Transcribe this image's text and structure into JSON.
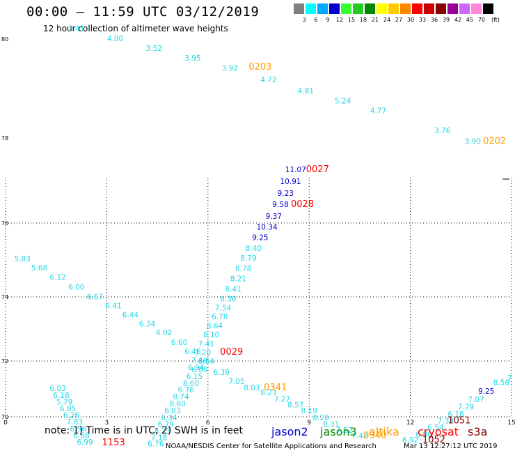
{
  "header": {
    "title": "00:00 – 11:59 UTC 03/12/2019",
    "subtitle": "12 hour collection of altimeter wave heights"
  },
  "colorscale": {
    "unit": "(ft)",
    "bins": [
      {
        "label": "3",
        "color": "#808080"
      },
      {
        "label": "6",
        "color": "#00ffff"
      },
      {
        "label": "9",
        "color": "#00aaff"
      },
      {
        "label": "12",
        "color": "#0000cc"
      },
      {
        "label": "15",
        "color": "#33ff33"
      },
      {
        "label": "18",
        "color": "#22cc22"
      },
      {
        "label": "21",
        "color": "#008800"
      },
      {
        "label": "24",
        "color": "#ffff00"
      },
      {
        "label": "27",
        "color": "#ffcc00"
      },
      {
        "label": "30",
        "color": "#ff8800"
      },
      {
        "label": "33",
        "color": "#ff0000"
      },
      {
        "label": "36",
        "color": "#cc0000"
      },
      {
        "label": "39",
        "color": "#880000"
      },
      {
        "label": "42",
        "color": "#990099"
      },
      {
        "label": "45",
        "color": "#cc66ff"
      },
      {
        "label": "70",
        "color": "#ff88dd"
      },
      {
        "label": "",
        "color": "#000000"
      }
    ]
  },
  "chart_data": {
    "type": "scatter",
    "x_ticks": [
      "0",
      "3",
      "6",
      "9",
      "12",
      "15"
    ],
    "y_ticks": [
      "70",
      "72",
      "74",
      "76",
      "78",
      "80"
    ],
    "xlim": [
      0,
      15
    ],
    "colors": {
      "cyan": "#1ed7e6",
      "blue": "#0000cc",
      "orange": "#ff9a00",
      "red": "#ff0000",
      "darkred": "#880000"
    },
    "points": [
      {
        "x": 2.1,
        "y": 80.16,
        "t": "3.41",
        "c": "cyan"
      },
      {
        "x": 3.25,
        "y": 79.96,
        "t": "4.00",
        "c": "cyan"
      },
      {
        "x": 4.4,
        "y": 79.76,
        "t": "3.52",
        "c": "cyan"
      },
      {
        "x": 5.55,
        "y": 79.56,
        "t": "3.95",
        "c": "cyan"
      },
      {
        "x": 6.65,
        "y": 79.36,
        "t": "3.92",
        "c": "cyan"
      },
      {
        "x": 7.8,
        "y": 79.13,
        "t": "4.72",
        "c": "cyan"
      },
      {
        "x": 8.9,
        "y": 78.9,
        "t": "4.81",
        "c": "cyan"
      },
      {
        "x": 10.0,
        "y": 78.7,
        "t": "5.24",
        "c": "cyan"
      },
      {
        "x": 11.05,
        "y": 78.5,
        "t": "4.77",
        "c": "cyan"
      },
      {
        "x": 12.95,
        "y": 78.1,
        "t": "3.76",
        "c": "cyan"
      },
      {
        "x": 13.85,
        "y": 77.86,
        "t": "3.90",
        "c": "cyan"
      },
      {
        "x": 8.6,
        "y": 77.2,
        "t": "11.07",
        "c": "blue"
      },
      {
        "x": 8.45,
        "y": 76.92,
        "t": "10.91",
        "c": "blue"
      },
      {
        "x": 8.3,
        "y": 76.64,
        "t": "9.23",
        "c": "blue"
      },
      {
        "x": 8.15,
        "y": 76.38,
        "t": "9.58",
        "c": "blue"
      },
      {
        "x": 7.95,
        "y": 76.1,
        "t": "9.37",
        "c": "blue"
      },
      {
        "x": 7.75,
        "y": 75.82,
        "t": "10.34",
        "c": "blue"
      },
      {
        "x": 7.55,
        "y": 75.54,
        "t": "9.25",
        "c": "blue"
      },
      {
        "x": 7.35,
        "y": 75.25,
        "t": "8.40",
        "c": "cyan"
      },
      {
        "x": 7.2,
        "y": 74.98,
        "t": "8.79",
        "c": "cyan"
      },
      {
        "x": 7.05,
        "y": 74.7,
        "t": "8.78",
        "c": "cyan"
      },
      {
        "x": 6.9,
        "y": 74.42,
        "t": "8.21",
        "c": "cyan"
      },
      {
        "x": 6.75,
        "y": 74.14,
        "t": "8.41",
        "c": "cyan"
      },
      {
        "x": 6.6,
        "y": 73.86,
        "t": "8.30",
        "c": "cyan"
      },
      {
        "x": 6.45,
        "y": 73.58,
        "t": "7.54",
        "c": "cyan"
      },
      {
        "x": 6.35,
        "y": 73.3,
        "t": "6.78",
        "c": "cyan"
      },
      {
        "x": 6.2,
        "y": 73.02,
        "t": "8.64",
        "c": "cyan"
      },
      {
        "x": 6.1,
        "y": 72.74,
        "t": "8.10",
        "c": "cyan"
      },
      {
        "x": 5.95,
        "y": 72.46,
        "t": "7.41",
        "c": "cyan"
      },
      {
        "x": 5.85,
        "y": 72.18,
        "t": "7.20",
        "c": "cyan"
      },
      {
        "x": 5.75,
        "y": 71.92,
        "t": "7.49",
        "c": "cyan"
      },
      {
        "x": 5.65,
        "y": 71.68,
        "t": "6.94",
        "c": "cyan"
      },
      {
        "x": 0.5,
        "y": 74.96,
        "t": "5.83",
        "c": "cyan"
      },
      {
        "x": 1.0,
        "y": 74.72,
        "t": "5.68",
        "c": "cyan"
      },
      {
        "x": 1.55,
        "y": 74.46,
        "t": "6.12",
        "c": "cyan"
      },
      {
        "x": 2.1,
        "y": 74.2,
        "t": "6.00",
        "c": "cyan"
      },
      {
        "x": 2.65,
        "y": 73.92,
        "t": "6.67",
        "c": "cyan"
      },
      {
        "x": 3.2,
        "y": 73.64,
        "t": "6.41",
        "c": "cyan"
      },
      {
        "x": 3.7,
        "y": 73.36,
        "t": "6.44",
        "c": "cyan"
      },
      {
        "x": 4.2,
        "y": 73.08,
        "t": "6.34",
        "c": "cyan"
      },
      {
        "x": 4.7,
        "y": 72.8,
        "t": "6.02",
        "c": "cyan"
      },
      {
        "x": 5.15,
        "y": 72.5,
        "t": "6.60",
        "c": "cyan"
      },
      {
        "x": 5.55,
        "y": 72.22,
        "t": "6.46",
        "c": "cyan"
      },
      {
        "x": 5.95,
        "y": 71.9,
        "t": "6.64",
        "c": "cyan"
      },
      {
        "x": 6.4,
        "y": 71.5,
        "t": "6.39",
        "c": "cyan"
      },
      {
        "x": 6.85,
        "y": 71.18,
        "t": "7.05",
        "c": "cyan"
      },
      {
        "x": 7.3,
        "y": 70.95,
        "t": "8.03",
        "c": "cyan"
      },
      {
        "x": 7.8,
        "y": 70.78,
        "t": "8.23",
        "c": "cyan"
      },
      {
        "x": 8.2,
        "y": 70.54,
        "t": "7.27",
        "c": "cyan"
      },
      {
        "x": 8.6,
        "y": 70.34,
        "t": "8.57",
        "c": "cyan"
      },
      {
        "x": 9.0,
        "y": 70.12,
        "t": "8.19",
        "c": "cyan"
      },
      {
        "x": 9.35,
        "y": 69.88,
        "t": "8.28",
        "c": "cyan"
      },
      {
        "x": 9.65,
        "y": 69.64,
        "t": "8.31",
        "c": "cyan"
      },
      {
        "x": 10.05,
        "y": 69.42,
        "t": "7.52",
        "c": "cyan"
      },
      {
        "x": 10.5,
        "y": 69.22,
        "t": "7.42",
        "c": "cyan"
      },
      {
        "x": 5.75,
        "y": 71.6,
        "t": "6.08",
        "c": "cyan"
      },
      {
        "x": 5.6,
        "y": 71.35,
        "t": "6.15",
        "c": "cyan"
      },
      {
        "x": 5.5,
        "y": 71.1,
        "t": "8.60",
        "c": "cyan"
      },
      {
        "x": 5.35,
        "y": 70.88,
        "t": "6.76",
        "c": "cyan"
      },
      {
        "x": 5.2,
        "y": 70.62,
        "t": "8.74",
        "c": "cyan"
      },
      {
        "x": 5.1,
        "y": 70.38,
        "t": "8.60",
        "c": "cyan"
      },
      {
        "x": 4.95,
        "y": 70.12,
        "t": "6.83",
        "c": "cyan"
      },
      {
        "x": 4.85,
        "y": 69.88,
        "t": "6.34",
        "c": "cyan"
      },
      {
        "x": 4.75,
        "y": 69.64,
        "t": "6.79",
        "c": "cyan"
      },
      {
        "x": 4.65,
        "y": 69.4,
        "t": "8.23",
        "c": "cyan"
      },
      {
        "x": 4.55,
        "y": 69.16,
        "t": "7.18",
        "c": "cyan"
      },
      {
        "x": 4.45,
        "y": 68.94,
        "t": "6.76",
        "c": "cyan"
      },
      {
        "x": 1.55,
        "y": 70.92,
        "t": "6.03",
        "c": "cyan"
      },
      {
        "x": 1.65,
        "y": 70.68,
        "t": "6.18",
        "c": "cyan"
      },
      {
        "x": 1.75,
        "y": 70.44,
        "t": "5.79",
        "c": "cyan"
      },
      {
        "x": 1.85,
        "y": 70.2,
        "t": "6.85",
        "c": "cyan"
      },
      {
        "x": 1.95,
        "y": 69.96,
        "t": "6.26",
        "c": "cyan"
      },
      {
        "x": 2.05,
        "y": 69.72,
        "t": "7.83",
        "c": "cyan"
      },
      {
        "x": 2.15,
        "y": 69.48,
        "t": "6.56",
        "c": "cyan"
      },
      {
        "x": 2.25,
        "y": 69.24,
        "t": "6.68",
        "c": "cyan"
      },
      {
        "x": 2.35,
        "y": 69.0,
        "t": "6.99",
        "c": "cyan"
      },
      {
        "x": 12.0,
        "y": 69.08,
        "t": "6.92",
        "c": "cyan"
      },
      {
        "x": 12.4,
        "y": 69.28,
        "t": "6.80",
        "c": "cyan"
      },
      {
        "x": 12.75,
        "y": 69.52,
        "t": "6.54",
        "c": "cyan"
      },
      {
        "x": 13.05,
        "y": 69.76,
        "t": "7.38",
        "c": "cyan"
      },
      {
        "x": 13.35,
        "y": 70.0,
        "t": "6.18",
        "c": "cyan"
      },
      {
        "x": 13.65,
        "y": 70.26,
        "t": "7.79",
        "c": "cyan"
      },
      {
        "x": 13.95,
        "y": 70.52,
        "t": "7.07",
        "c": "cyan"
      },
      {
        "x": 14.25,
        "y": 70.82,
        "t": "9.25",
        "c": "blue"
      },
      {
        "x": 14.7,
        "y": 71.14,
        "t": "8.58",
        "c": "cyan"
      },
      {
        "x": 14.95,
        "y": 71.3,
        "t": "7",
        "c": "cyan"
      }
    ],
    "time_labels": [
      {
        "x": 7.55,
        "y": 79.38,
        "t": "0203",
        "c": "orange"
      },
      {
        "x": 14.5,
        "y": 77.86,
        "t": "0202",
        "c": "orange"
      },
      {
        "x": 9.25,
        "y": 77.2,
        "t": "0027",
        "c": "red"
      },
      {
        "x": 8.8,
        "y": 76.38,
        "t": "0028",
        "c": "red"
      },
      {
        "x": 6.7,
        "y": 72.2,
        "t": "0029",
        "c": "red"
      },
      {
        "x": 8.0,
        "y": 70.95,
        "t": "0341",
        "c": "orange"
      },
      {
        "x": 10.95,
        "y": 69.22,
        "t": "0340",
        "c": "orange"
      },
      {
        "x": 3.2,
        "y": 68.98,
        "t": "1153",
        "c": "red"
      },
      {
        "x": 13.45,
        "y": 69.76,
        "t": "1051",
        "c": "darkred"
      },
      {
        "x": 12.7,
        "y": 69.08,
        "t": "1052",
        "c": "darkred"
      }
    ]
  },
  "notes": {
    "note": "note: 1) Time is in UTC; 2) SWH is in feet",
    "jason2": "jason2",
    "jason3": "jason3",
    "altika": "altika",
    "cryosat": "cryosat",
    "s3a": "s3a",
    "colors": {
      "jason2": "#0000cc",
      "jason3": "#008800",
      "altika": "#ff9a00",
      "cryosat": "#ff0000",
      "s3a": "#880000"
    }
  },
  "footer": {
    "credit": "NOAA/NESDIS Center for Satellite Applications and Research",
    "timestamp": "Mar 13 12:27:12 UTC 2019"
  }
}
